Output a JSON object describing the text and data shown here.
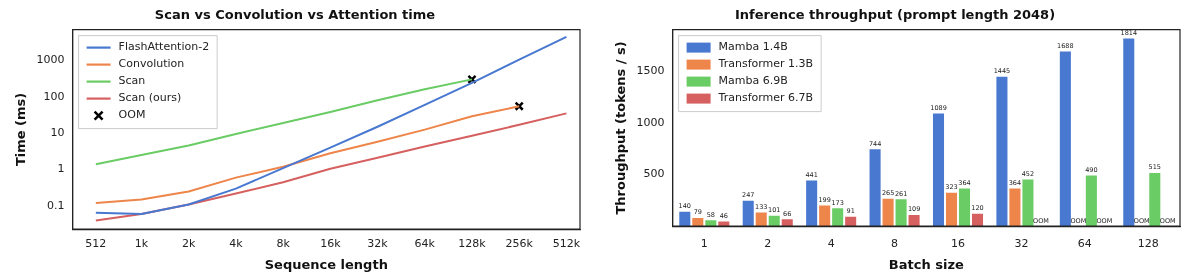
{
  "chart_data": [
    {
      "type": "line",
      "title": "Scan vs Convolution vs Attention time",
      "xlabel": "Sequence length",
      "ylabel": "Time (ms)",
      "log": "xy",
      "legend": "top left",
      "grid": false,
      "line_style": "solid",
      "marker": "none",
      "x": [
        512,
        1000,
        2000,
        4000,
        8000,
        16000,
        32000,
        64000,
        128000,
        256000,
        512000
      ],
      "xlim": [
        364,
        625000
      ],
      "ylim": [
        0.023,
        7000
      ],
      "xticks": [
        512,
        {
          "value": 1000,
          "label": "1k"
        },
        {
          "value": 2000,
          "label": "2k"
        },
        {
          "value": 4000,
          "label": "4k"
        },
        {
          "value": 8000,
          "label": "8k"
        },
        {
          "value": 16000,
          "label": "16k"
        },
        {
          "value": 32000,
          "label": "32k"
        },
        {
          "value": 64000,
          "label": "64k"
        },
        {
          "value": 128000,
          "label": "128k"
        },
        {
          "value": 256000,
          "label": "256k"
        },
        {
          "value": 512000,
          "label": "512k"
        }
      ],
      "yticks": [
        0.1,
        1,
        10,
        100,
        1000
      ],
      "series": [
        {
          "name": "FlashAttention-2",
          "color": "#4878d0",
          "values": [
            0.065,
            0.06,
            0.11,
            0.3,
            1.1,
            4,
            15,
            60,
            240,
            1050,
            4400
          ]
        },
        {
          "name": "Convolution",
          "color": "#ee854a",
          "values": [
            0.12,
            0.15,
            0.25,
            0.6,
            1.2,
            2.8,
            5.8,
            12.5,
            29,
            55,
            null
          ]
        },
        {
          "name": "Scan",
          "color": "#6acc64",
          "values": [
            1.4,
            2.5,
            4.6,
            9.5,
            19,
            38,
            80,
            160,
            300,
            null,
            null
          ]
        },
        {
          "name": "Scan (ours)",
          "color": "#d65f5f",
          "values": [
            0.04,
            0.06,
            0.11,
            0.22,
            0.45,
            1.05,
            2.1,
            4.3,
            8.5,
            17,
            35
          ]
        },
        {
          "name": "OOM",
          "type": "scatter",
          "marker": "cross",
          "color": "#000000",
          "x": [
            128000,
            256000
          ],
          "values": [
            300,
            55
          ]
        }
      ]
    },
    {
      "type": "bar",
      "title": "Inference throughput (prompt length 2048)",
      "xlabel": "Batch size",
      "ylabel": "Throughput (tokens / s)",
      "legend": "top left",
      "grid": false,
      "categories": [
        "1",
        "2",
        "4",
        "8",
        "16",
        "32",
        "64",
        "128"
      ],
      "ylim": [
        0,
        1900
      ],
      "yticks": [
        500,
        1000,
        1500
      ],
      "series": [
        {
          "name": "Mamba 1.4B",
          "color": "#4878d0",
          "values": [
            140,
            247,
            441,
            744,
            1089,
            1445,
            1688,
            1814
          ],
          "value_labels": [
            "140",
            "247",
            "441",
            "744",
            "1089",
            "1445",
            "1688",
            "1814"
          ]
        },
        {
          "name": "Transformer 1.3B",
          "color": "#ee854a",
          "values": [
            79,
            133,
            199,
            265,
            323,
            364,
            null,
            null
          ],
          "value_labels": [
            "79",
            "133",
            "199",
            "265",
            "323",
            "364",
            "OOM",
            "OOM"
          ]
        },
        {
          "name": "Mamba 6.9B",
          "color": "#6acc64",
          "values": [
            58,
            101,
            173,
            261,
            364,
            452,
            490,
            515
          ],
          "value_labels": [
            "58",
            "101",
            "173",
            "261",
            "364",
            "452",
            "490",
            "515"
          ]
        },
        {
          "name": "Transformer 6.7B",
          "color": "#d65f5f",
          "values": [
            46,
            66,
            91,
            109,
            120,
            null,
            null,
            null
          ],
          "value_labels": [
            "46",
            "66",
            "91",
            "109",
            "120",
            "OOM",
            "OOM",
            "OOM"
          ]
        }
      ]
    }
  ]
}
